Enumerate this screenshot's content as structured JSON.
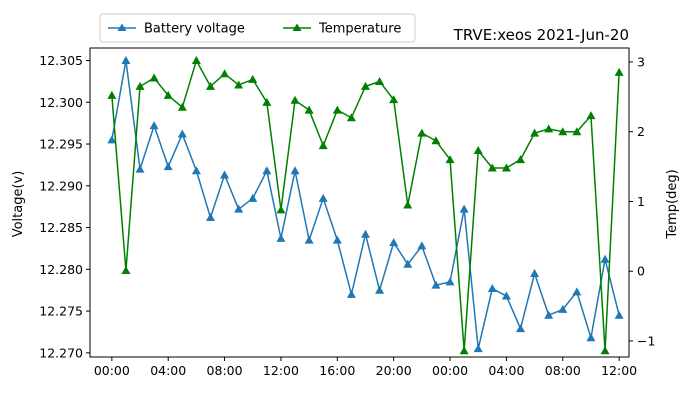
{
  "chart_data": {
    "type": "line",
    "title": "TRVE:xeos 2021-Jun-20",
    "xlabel": "",
    "ylabel_left": "Voltage(v)",
    "ylabel_right": "Temp(deg)",
    "x_unit": "hours",
    "x_range": [
      -1.55,
      36.7
    ],
    "x_ticks": [
      {
        "label": "00:00",
        "hours": 0
      },
      {
        "label": "04:00",
        "hours": 4
      },
      {
        "label": "08:00",
        "hours": 8
      },
      {
        "label": "12:00",
        "hours": 12
      },
      {
        "label": "16:00",
        "hours": 16
      },
      {
        "label": "20:00",
        "hours": 20
      },
      {
        "label": "00:00",
        "hours": 24
      },
      {
        "label": "04:00",
        "hours": 28
      },
      {
        "label": "08:00",
        "hours": 32
      },
      {
        "label": "12:00",
        "hours": 36
      }
    ],
    "ylim_left": [
      12.2695,
      12.3065
    ],
    "yticks_left": [
      "12.270",
      "12.275",
      "12.280",
      "12.285",
      "12.290",
      "12.295",
      "12.300",
      "12.305"
    ],
    "ylim_right": [
      -1.23,
      3.2
    ],
    "yticks_right": [
      "−1",
      "0",
      "1",
      "2",
      "3"
    ],
    "legend_position": "top-left, above axes",
    "x": [
      0,
      1,
      2,
      3,
      4,
      5,
      6,
      7,
      8,
      9,
      10,
      11,
      12,
      13,
      14,
      15,
      16,
      17,
      18,
      19,
      20,
      21,
      22,
      23,
      24,
      25,
      26,
      27,
      28,
      29,
      30,
      31,
      32,
      33,
      34,
      35,
      36
    ],
    "series": [
      {
        "name": "Battery voltage",
        "axis": "left",
        "color": "#1f77b4",
        "marker": "triangle",
        "values": [
          12.2955,
          12.305,
          12.292,
          12.2972,
          12.2923,
          12.2962,
          12.2918,
          12.2862,
          12.2913,
          12.2872,
          12.2885,
          12.2918,
          12.2837,
          12.2918,
          12.2835,
          12.2885,
          12.2835,
          12.277,
          12.2842,
          12.2775,
          12.2832,
          12.2806,
          12.2828,
          12.2781,
          12.2785,
          12.2872,
          12.2705,
          12.2777,
          12.2768,
          12.2729,
          12.2795,
          12.2745,
          12.2752,
          12.2773,
          12.2718,
          12.2812,
          12.2745
        ]
      },
      {
        "name": "Temperature",
        "axis": "right",
        "color": "#008000",
        "marker": "triangle",
        "values": [
          2.52,
          0.01,
          2.65,
          2.77,
          2.52,
          2.35,
          3.02,
          2.65,
          2.83,
          2.67,
          2.75,
          2.42,
          0.88,
          2.45,
          2.31,
          1.8,
          2.31,
          2.2,
          2.65,
          2.72,
          2.46,
          0.95,
          1.98,
          1.87,
          1.6,
          -1.14,
          1.73,
          1.48,
          1.48,
          1.6,
          1.98,
          2.04,
          2.0,
          2.0,
          2.23,
          -1.14,
          2.85
        ]
      }
    ]
  }
}
